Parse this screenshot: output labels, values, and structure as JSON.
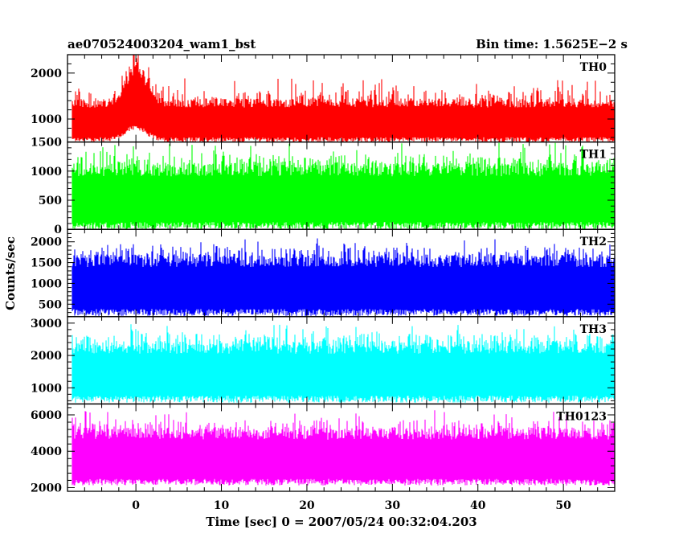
{
  "header": {
    "title": "ae070524003204_wam1_bst",
    "bin_time": "Bin time: 1.5625E−2 s"
  },
  "axes": {
    "ylabel": "Counts/sec",
    "xlabel": "Time [sec] 0 = 2007/05/24 00:32:04.203",
    "x_tick_labels": [
      "0",
      "10",
      "20",
      "30",
      "40",
      "50"
    ]
  },
  "chart_data": {
    "type": "line",
    "x": {
      "range": [
        -8,
        56
      ],
      "ticks": [
        0,
        10,
        20,
        30,
        40,
        50
      ],
      "minor_step": 2,
      "data_start": -7.5,
      "data_end": 56,
      "bin": 0.015625
    },
    "grid": false,
    "series": [
      {
        "name": "TH0",
        "color": "#ff0000",
        "ylim": [
          500,
          2400
        ],
        "yticks": [
          1000,
          2000
        ],
        "yminor_step": 200,
        "typical_min": 550,
        "typical_max": 1450,
        "spike_max": 1900,
        "burst": {
          "t_peak": 0,
          "width": 1.7,
          "amplitude": 900
        }
      },
      {
        "name": "TH1",
        "color": "#00ff00",
        "ylim": [
          0,
          1500
        ],
        "yticks": [
          0,
          500,
          1000,
          1500
        ],
        "yminor_step": 100,
        "typical_min": 60,
        "typical_max": 1150,
        "spike_max": 1500
      },
      {
        "name": "TH2",
        "color": "#0000ff",
        "ylim": [
          200,
          2300
        ],
        "yticks": [
          500,
          1000,
          1500,
          2000
        ],
        "yminor_step": 100,
        "typical_min": 300,
        "typical_max": 1700,
        "spike_max": 2100
      },
      {
        "name": "TH3",
        "color": "#00ffff",
        "ylim": [
          500,
          3200
        ],
        "yticks": [
          1000,
          2000,
          3000
        ],
        "yminor_step": 200,
        "typical_min": 650,
        "typical_max": 2450,
        "spike_max": 3000
      },
      {
        "name": "TH0123",
        "color": "#ff00ff",
        "ylim": [
          1800,
          6600
        ],
        "yticks": [
          2000,
          4000,
          6000
        ],
        "yminor_step": 400,
        "typical_min": 2300,
        "typical_max": 5300,
        "spike_max": 6300
      }
    ]
  }
}
